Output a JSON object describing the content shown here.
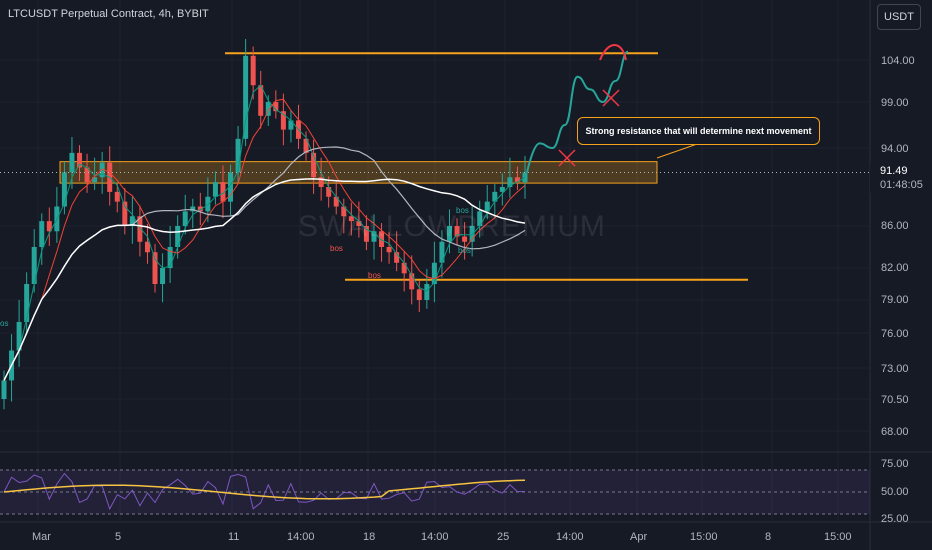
{
  "header": {
    "title": "LTCUSDT Perpetual Contract, 4h, BYBIT",
    "currency": "USDT"
  },
  "watermark": "SWALLOWPREMIUM",
  "callout": {
    "text": "Strong resistance that will determine next movement"
  },
  "last_price": {
    "value": "91.49",
    "countdown": "01:48:05"
  },
  "annotations": {
    "bos_1": "bos",
    "bos_2": "bos",
    "bos_3": "bos",
    "bos_4": "bos",
    "bos_left": "os"
  },
  "colors": {
    "up": "#26a69a",
    "down": "#ef5350",
    "accent": "#f7a21b",
    "sma_fast": "#089981",
    "sma_slow": "#f44336",
    "ema_white": "#ffffff",
    "ema_gray": "#b2b5be",
    "rsi": "#7e57c2",
    "rsi_ma": "#f7c442",
    "projection": "#26a69a",
    "cross": "#f23645"
  },
  "chart_data": {
    "type": "candlestick",
    "title": "LTCUSDT Perpetual Contract, 4h, BYBIT",
    "price_axis": [
      "104.00",
      "99.00",
      "94.00",
      "86.00",
      "82.00",
      "79.00",
      "76.00",
      "73.00",
      "70.50",
      "68.00"
    ],
    "price_ticks": [
      104.0,
      99.0,
      94.0,
      86.0,
      82.0,
      79.0,
      76.0,
      73.0,
      70.5,
      68.0
    ],
    "time_axis": [
      "Mar",
      "5",
      "11",
      "14:00",
      "18",
      "14:00",
      "25",
      "14:00",
      "Apr",
      "15:00",
      "8",
      "15:00"
    ],
    "ohlc_close_path": [
      72.0,
      74.5,
      77.0,
      80.5,
      84.0,
      86.5,
      85.5,
      88.0,
      91.5,
      93.5,
      92.0,
      90.5,
      91.0,
      92.5,
      89.5,
      88.5,
      86.0,
      87.0,
      84.5,
      83.5,
      80.5,
      82.0,
      84.0,
      86.0,
      87.5,
      88.0,
      87.5,
      89.0,
      90.5,
      88.5,
      91.5,
      95.0,
      104.5,
      101.0,
      97.5,
      99.0,
      98.0,
      96.0,
      97.0,
      95.0,
      93.5,
      91.0,
      90.0,
      89.0,
      88.0,
      87.0,
      86.5,
      86.0,
      84.5,
      85.5,
      84.0,
      83.5,
      82.5,
      81.5,
      80.0,
      79.0,
      80.5,
      82.5,
      84.5,
      86.0,
      85.0,
      84.5,
      86.0,
      87.5,
      88.5,
      89.5,
      90.0,
      91.0,
      90.5,
      91.49
    ],
    "resistance_top": 104.8,
    "resistance_zone": [
      92.6,
      90.4
    ],
    "support_level": 80.9,
    "projection_path": [
      91.5,
      94.5,
      94.0,
      96.5,
      102.0,
      100.5,
      99.0,
      101.5,
      105.0
    ],
    "last_price": 91.49,
    "rsi": {
      "axis": [
        "75.00",
        "50.00",
        "25.00"
      ],
      "levels": [
        70,
        50,
        30
      ]
    }
  }
}
